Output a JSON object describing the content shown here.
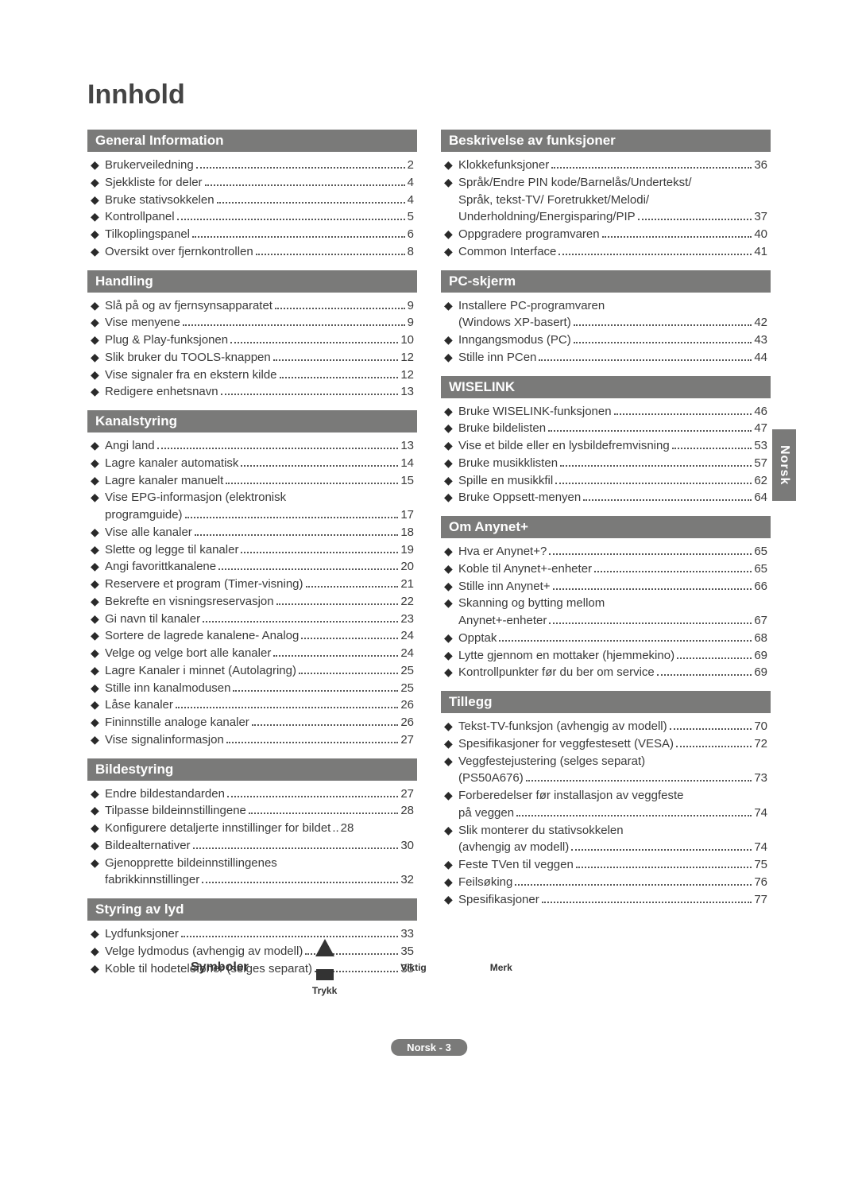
{
  "title": "Innhold",
  "side_tab": "Norsk",
  "footer": "Norsk - 3",
  "symbols": {
    "label": "Symboler",
    "items": [
      "Trykk",
      "Viktig",
      "Merk"
    ]
  },
  "left_sections": [
    {
      "header": "General Information",
      "items": [
        {
          "label": "Brukerveiledning",
          "page": "2"
        },
        {
          "label": "Sjekkliste for deler",
          "page": "4"
        },
        {
          "label": "Bruke stativsokkelen",
          "page": "4"
        },
        {
          "label": "Kontrollpanel",
          "page": "5"
        },
        {
          "label": "Tilkoplingspanel",
          "page": "6"
        },
        {
          "label": "Oversikt over fjernkontrollen",
          "page": "8"
        }
      ]
    },
    {
      "header": "Handling",
      "items": [
        {
          "label": "Slå på og av fjernsynsapparatet",
          "page": "9"
        },
        {
          "label": "Vise menyene",
          "page": "9"
        },
        {
          "label": "Plug & Play-funksjonen",
          "page": "10"
        },
        {
          "label": "Slik bruker du TOOLS-knappen",
          "page": "12"
        },
        {
          "label": "Vise signaler fra en ekstern kilde",
          "page": "12"
        },
        {
          "label": "Redigere enhetsnavn",
          "page": "13"
        }
      ]
    },
    {
      "header": "Kanalstyring",
      "items": [
        {
          "label": "Angi land",
          "page": "13"
        },
        {
          "label": "Lagre kanaler automatisk",
          "page": "14"
        },
        {
          "label": "Lagre kanaler manuelt",
          "page": "15"
        },
        {
          "label": "Vise EPG-informasjon (elektronisk",
          "cont": "programguide)",
          "page": "17"
        },
        {
          "label": "Vise alle kanaler",
          "page": "18"
        },
        {
          "label": "Slette og legge til kanaler",
          "page": "19"
        },
        {
          "label": "Angi favorittkanalene",
          "page": "20"
        },
        {
          "label": "Reservere et program (Timer-visning)",
          "page": "21"
        },
        {
          "label": "Bekrefte en visningsreservasjon",
          "page": "22"
        },
        {
          "label": "Gi navn til kanaler",
          "page": "23"
        },
        {
          "label": "Sortere de lagrede kanalene- Analog",
          "page": "24"
        },
        {
          "label": "Velge og velge bort alle kanaler",
          "page": "24"
        },
        {
          "label": "Lagre Kanaler i minnet (Autolagring)",
          "page": "25"
        },
        {
          "label": "Stille inn kanalmodusen",
          "page": "25"
        },
        {
          "label": "Låse kanaler",
          "page": "26"
        },
        {
          "label": "Fininnstille analoge kanaler",
          "page": "26"
        },
        {
          "label": "Vise signalinformasjon",
          "page": "27"
        }
      ]
    },
    {
      "header": "Bildestyring",
      "items": [
        {
          "label": "Endre bildestandarden",
          "page": "27"
        },
        {
          "label": "Tilpasse bildeinnstillingene",
          "page": "28"
        },
        {
          "label": "Konfigurere detaljerte innstillinger for bildet",
          "page": "28",
          "tight": true
        },
        {
          "label": "Bildealternativer",
          "page": "30"
        },
        {
          "label": "Gjenopprette bildeinnstillingenes",
          "cont": "fabrikkinnstillinger",
          "page": "32"
        }
      ]
    },
    {
      "header": "Styring av lyd",
      "items": [
        {
          "label": "Lydfunksjoner",
          "page": "33"
        },
        {
          "label": "Velge lydmodus (avhengig av modell)",
          "page": "35"
        },
        {
          "label": "Koble til hodetelefoner (selges separat)",
          "page": "35"
        }
      ]
    }
  ],
  "right_sections": [
    {
      "header": "Beskrivelse av funksjoner",
      "items": [
        {
          "label": "Klokkefunksjoner",
          "page": "36"
        },
        {
          "label": "Språk/Endre PIN kode/Barnelås/Undertekst/",
          "cont2": [
            "Språk, tekst-TV/ Foretrukket/Melodi/",
            "Underholdning/Energisparing/PIP"
          ],
          "page": "37"
        },
        {
          "label": "Oppgradere programvaren",
          "page": "40"
        },
        {
          "label": "Common Interface",
          "page": "41"
        }
      ]
    },
    {
      "header": "PC-skjerm",
      "items": [
        {
          "label": "Installere PC-programvaren",
          "cont": "(Windows XP-basert)",
          "page": "42"
        },
        {
          "label": "Inngangsmodus (PC)",
          "page": "43"
        },
        {
          "label": "Stille inn PCen",
          "page": "44"
        }
      ]
    },
    {
      "header": "WISELINK",
      "items": [
        {
          "label": "Bruke WISELINK-funksjonen",
          "page": "46"
        },
        {
          "label": "Bruke bildelisten",
          "page": "47"
        },
        {
          "label": "Vise et bilde eller en lysbildefremvisning",
          "page": "53"
        },
        {
          "label": "Bruke musikklisten",
          "page": "57"
        },
        {
          "label": "Spille en musikkfil",
          "page": "62"
        },
        {
          "label": "Bruke Oppsett-menyen",
          "page": "64"
        }
      ]
    },
    {
      "header": "Om Anynet+",
      "items": [
        {
          "label": "Hva er Anynet+?",
          "page": "65"
        },
        {
          "label": "Koble til Anynet+-enheter",
          "page": "65"
        },
        {
          "label": "Stille inn Anynet+",
          "page": "66"
        },
        {
          "label": "Skanning og bytting mellom",
          "cont": "Anynet+-enheter",
          "page": "67"
        },
        {
          "label": "Opptak",
          "page": "68"
        },
        {
          "label": "Lytte gjennom en mottaker (hjemmekino)",
          "page": "69"
        },
        {
          "label": "Kontrollpunkter før du ber om service",
          "page": "69"
        }
      ]
    },
    {
      "header": "Tillegg",
      "items": [
        {
          "label": "Tekst-TV-funksjon (avhengig av modell)",
          "page": "70"
        },
        {
          "label": "Spesifikasjoner for veggfestesett (VESA)",
          "page": "72"
        },
        {
          "label": "Veggfestejustering (selges separat)",
          "cont": "(PS50A676)",
          "page": "73"
        },
        {
          "label": "Forberedelser før installasjon av veggfeste",
          "cont": "på veggen",
          "page": "74"
        },
        {
          "label": "Slik monterer du stativsokkelen",
          "cont": "(avhengig av modell)",
          "page": "74"
        },
        {
          "label": "Feste TVen til veggen",
          "page": "75"
        },
        {
          "label": "Feilsøking",
          "page": "76"
        },
        {
          "label": "Spesifikasjoner",
          "page": "77"
        }
      ]
    }
  ],
  "colors": {
    "header_bg": "#7a7a79",
    "text": "#3a3a3a",
    "page_bg": "#ffffff"
  }
}
